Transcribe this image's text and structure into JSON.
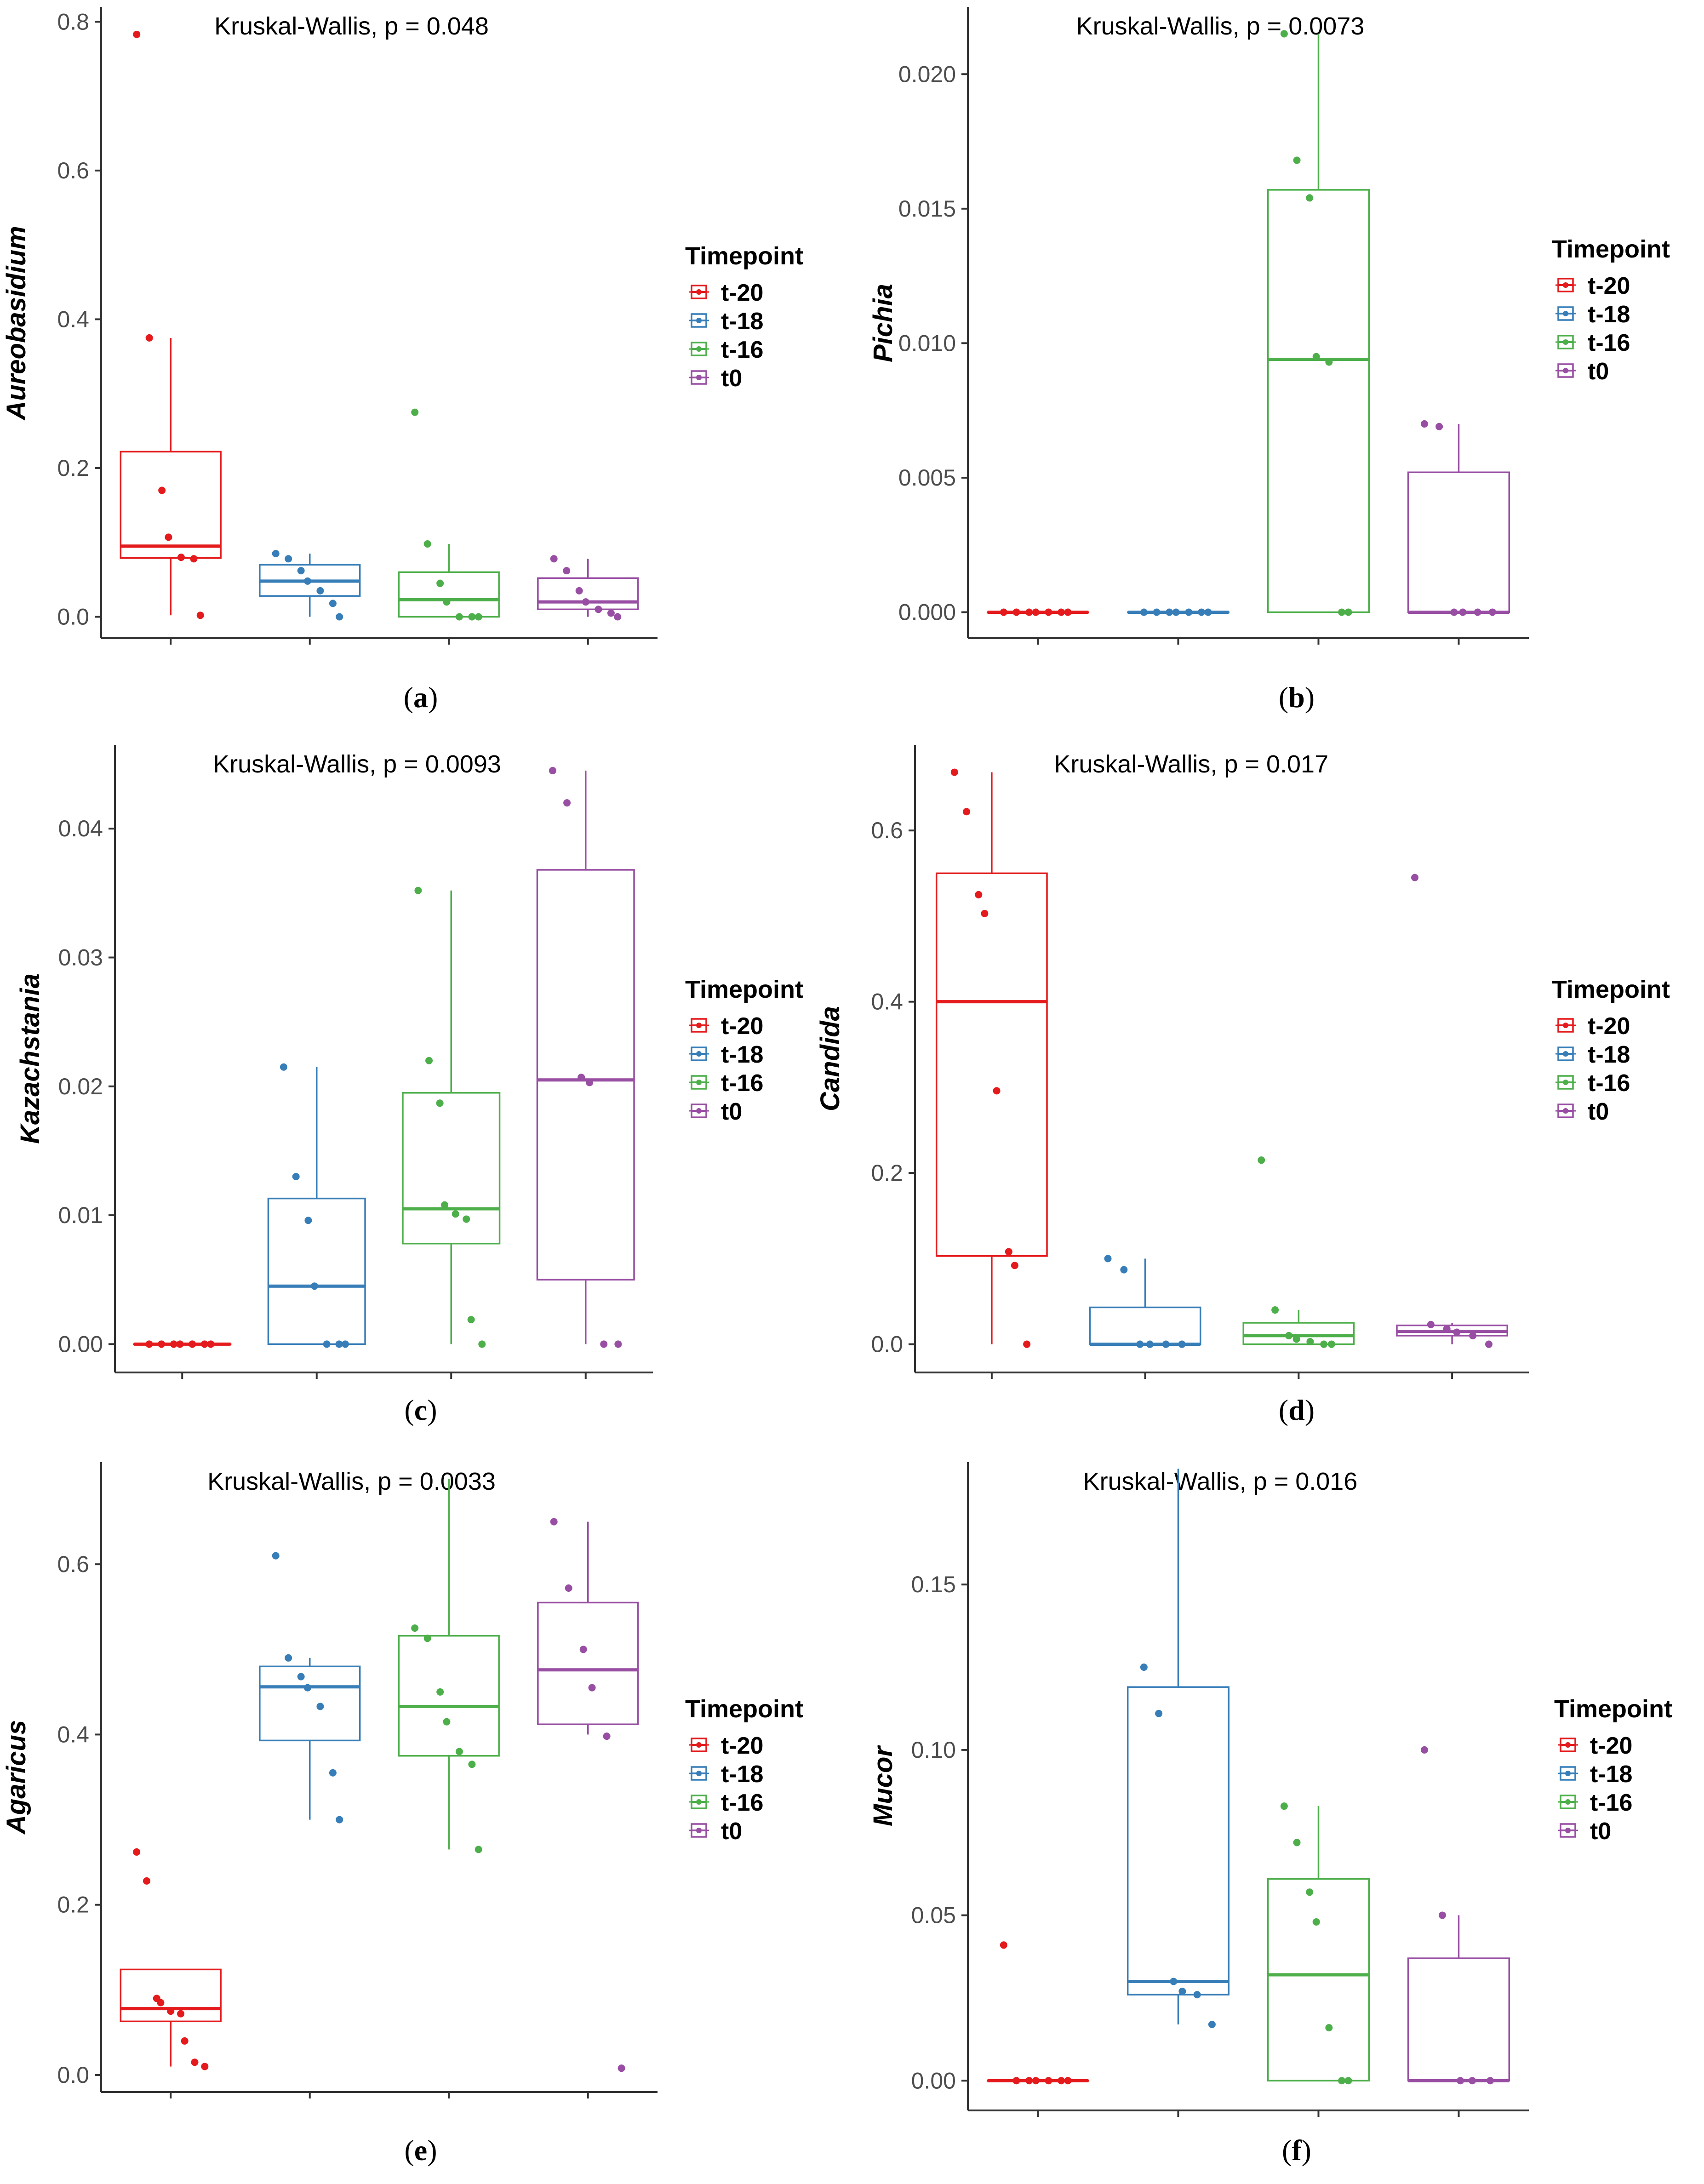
{
  "colors": {
    "t-20": "#e41a1c",
    "t-18": "#377eb8",
    "t-16": "#4daf4a",
    "t0": "#984ea3",
    "axis": "#333333",
    "text": "#000000"
  },
  "legend": {
    "title": "Timepoint",
    "entries": [
      "t-20",
      "t-18",
      "t-16",
      "t0"
    ]
  },
  "captions": [
    "a",
    "b",
    "c",
    "d",
    "e",
    "f"
  ],
  "chart_data": [
    {
      "panel": "a",
      "type": "boxplot",
      "ylabel": "Aureobasidium",
      "annotation": "Kruskal-Wallis, p = 0.048",
      "ylim": [
        -0.03,
        0.82
      ],
      "yticks": [
        0.0,
        0.2,
        0.4,
        0.6,
        0.8
      ],
      "ytick_labels": [
        "0.0",
        "0.2",
        "0.4",
        "0.6",
        "0.8"
      ],
      "groups": [
        {
          "name": "t-20",
          "q1": 0.079,
          "median": 0.095,
          "q3": 0.222,
          "whisker_low": 0.002,
          "whisker_high": 0.375,
          "points": [
            0.783,
            0.375,
            0.17,
            0.107,
            0.08,
            0.078,
            0.002
          ]
        },
        {
          "name": "t-18",
          "q1": 0.028,
          "median": 0.048,
          "q3": 0.07,
          "whisker_low": 0.0,
          "whisker_high": 0.085,
          "points": [
            0.085,
            0.078,
            0.062,
            0.048,
            0.035,
            0.018,
            0.0
          ]
        },
        {
          "name": "t-16",
          "q1": 0.0,
          "median": 0.023,
          "q3": 0.06,
          "whisker_low": 0.0,
          "whisker_high": 0.098,
          "points": [
            0.275,
            0.098,
            0.045,
            0.02,
            0.0,
            0.0,
            0.0
          ]
        },
        {
          "name": "t0",
          "q1": 0.01,
          "median": 0.02,
          "q3": 0.052,
          "whisker_low": 0.0,
          "whisker_high": 0.078,
          "points": [
            0.078,
            0.062,
            0.035,
            0.02,
            0.01,
            0.005,
            0.0
          ]
        }
      ]
    },
    {
      "panel": "b",
      "type": "boxplot",
      "ylabel": "Pichia",
      "annotation": "Kruskal-Wallis, p = 0.0073",
      "ylim": [
        -0.001,
        0.0225
      ],
      "yticks": [
        0.0,
        0.005,
        0.01,
        0.015,
        0.02
      ],
      "ytick_labels": [
        "0.000",
        "0.005",
        "0.010",
        "0.015",
        "0.020"
      ],
      "groups": [
        {
          "name": "t-20",
          "q1": 0.0,
          "median": 0.0,
          "q3": 0.0,
          "whisker_low": 0.0,
          "whisker_high": 0.0,
          "points": [
            0,
            0,
            0,
            0,
            0,
            0,
            0
          ]
        },
        {
          "name": "t-18",
          "q1": 0.0,
          "median": 0.0,
          "q3": 0.0,
          "whisker_low": 0.0,
          "whisker_high": 0.0,
          "points": [
            0,
            0,
            0,
            0,
            0,
            0,
            0
          ]
        },
        {
          "name": "t-16",
          "q1": 0.0,
          "median": 0.0094,
          "q3": 0.0157,
          "whisker_low": 0.0,
          "whisker_high": 0.0215,
          "points": [
            0.0215,
            0.0168,
            0.0154,
            0.0095,
            0.0093,
            0.0,
            0.0
          ]
        },
        {
          "name": "t0",
          "q1": 0.0,
          "median": 0.0,
          "q3": 0.0052,
          "whisker_low": 0.0,
          "whisker_high": 0.007,
          "points": [
            0.007,
            0.0069,
            0.0,
            0.0,
            0.0,
            0.0
          ]
        }
      ]
    },
    {
      "panel": "c",
      "type": "boxplot",
      "ylabel": "Kazachstania",
      "annotation": "Kruskal-Wallis, p = 0.0093",
      "ylim": [
        -0.0022,
        0.0465
      ],
      "yticks": [
        0.0,
        0.01,
        0.02,
        0.03,
        0.04
      ],
      "ytick_labels": [
        "0.00",
        "0.01",
        "0.02",
        "0.03",
        "0.04"
      ],
      "groups": [
        {
          "name": "t-20",
          "q1": 0.0,
          "median": 0.0,
          "q3": 0.0,
          "whisker_low": 0.0,
          "whisker_high": 0.0,
          "points": [
            0,
            0,
            0,
            0,
            0,
            0,
            0
          ]
        },
        {
          "name": "t-18",
          "q1": 0.0,
          "median": 0.0045,
          "q3": 0.0113,
          "whisker_low": 0.0,
          "whisker_high": 0.0215,
          "points": [
            0.0215,
            0.013,
            0.0096,
            0.0045,
            0.0,
            0.0,
            0.0
          ]
        },
        {
          "name": "t-16",
          "q1": 0.0078,
          "median": 0.0105,
          "q3": 0.0195,
          "whisker_low": 0.0,
          "whisker_high": 0.0352,
          "points": [
            0.0352,
            0.022,
            0.0187,
            0.0108,
            0.0101,
            0.0097,
            0.0019,
            0.0
          ]
        },
        {
          "name": "t0",
          "q1": 0.005,
          "median": 0.0205,
          "q3": 0.0368,
          "whisker_low": 0.0,
          "whisker_high": 0.0445,
          "points": [
            0.0445,
            0.042,
            0.0207,
            0.0203,
            0.0,
            0.0
          ]
        }
      ]
    },
    {
      "panel": "d",
      "type": "boxplot",
      "ylabel": "Candida",
      "annotation": "Kruskal-Wallis, p = 0.017",
      "ylim": [
        -0.033,
        0.7
      ],
      "yticks": [
        0.0,
        0.2,
        0.4,
        0.6
      ],
      "ytick_labels": [
        "0.0",
        "0.2",
        "0.4",
        "0.6"
      ],
      "groups": [
        {
          "name": "t-20",
          "q1": 0.103,
          "median": 0.4,
          "q3": 0.55,
          "whisker_low": 0.0,
          "whisker_high": 0.668,
          "points": [
            0.668,
            0.622,
            0.525,
            0.503,
            0.296,
            0.108,
            0.092,
            0.0
          ]
        },
        {
          "name": "t-18",
          "q1": 0.0,
          "median": 0.0,
          "q3": 0.043,
          "whisker_low": 0.0,
          "whisker_high": 0.1,
          "points": [
            0.1,
            0.087,
            0.0,
            0.0,
            0.0,
            0.0
          ]
        },
        {
          "name": "t-16",
          "q1": 0.0,
          "median": 0.01,
          "q3": 0.025,
          "whisker_low": 0.0,
          "whisker_high": 0.04,
          "points": [
            0.215,
            0.04,
            0.01,
            0.006,
            0.003,
            0.0,
            0.0
          ]
        },
        {
          "name": "t0",
          "q1": 0.01,
          "median": 0.015,
          "q3": 0.022,
          "whisker_low": 0.0,
          "whisker_high": 0.025,
          "points": [
            0.545,
            0.023,
            0.018,
            0.014,
            0.01,
            0.0
          ]
        }
      ]
    },
    {
      "panel": "e",
      "type": "boxplot",
      "ylabel": "Agaricus",
      "annotation": "Kruskal-Wallis, p = 0.0033",
      "ylim": [
        -0.02,
        0.72
      ],
      "yticks": [
        0.0,
        0.2,
        0.4,
        0.6
      ],
      "ytick_labels": [
        "0.0",
        "0.2",
        "0.4",
        "0.6"
      ],
      "groups": [
        {
          "name": "t-20",
          "q1": 0.063,
          "median": 0.078,
          "q3": 0.124,
          "whisker_low": 0.01,
          "whisker_high": 0.124,
          "points": [
            0.262,
            0.228,
            0.09,
            0.085,
            0.075,
            0.072,
            0.04,
            0.015,
            0.01
          ]
        },
        {
          "name": "t-18",
          "q1": 0.393,
          "median": 0.456,
          "q3": 0.48,
          "whisker_low": 0.3,
          "whisker_high": 0.49,
          "points": [
            0.61,
            0.49,
            0.468,
            0.455,
            0.433,
            0.355,
            0.3
          ]
        },
        {
          "name": "t-16",
          "q1": 0.375,
          "median": 0.433,
          "q3": 0.516,
          "whisker_low": 0.265,
          "whisker_high": 0.7,
          "points": [
            0.525,
            0.513,
            0.45,
            0.415,
            0.38,
            0.365,
            0.265
          ]
        },
        {
          "name": "t0",
          "q1": 0.412,
          "median": 0.476,
          "q3": 0.555,
          "whisker_low": 0.4,
          "whisker_high": 0.65,
          "points": [
            0.65,
            0.572,
            0.5,
            0.455,
            0.398,
            0.008
          ]
        }
      ]
    },
    {
      "panel": "f",
      "type": "boxplot",
      "ylabel": "Mucor",
      "annotation": "Kruskal-Wallis, p = 0.016",
      "ylim": [
        -0.009,
        0.187
      ],
      "yticks": [
        0.0,
        0.05,
        0.1,
        0.15
      ],
      "ytick_labels": [
        "0.00",
        "0.05",
        "0.10",
        "0.15"
      ],
      "groups": [
        {
          "name": "t-20",
          "q1": 0.0,
          "median": 0.0,
          "q3": 0.0,
          "whisker_low": 0.0,
          "whisker_high": 0.0,
          "points": [
            0.041,
            0.0,
            0.0,
            0.0,
            0.0,
            0.0,
            0.0
          ]
        },
        {
          "name": "t-18",
          "q1": 0.026,
          "median": 0.03,
          "q3": 0.119,
          "whisker_low": 0.017,
          "whisker_high": 0.185,
          "points": [
            0.125,
            0.111,
            0.03,
            0.027,
            0.026,
            0.017
          ]
        },
        {
          "name": "t-16",
          "q1": 0.0,
          "median": 0.032,
          "q3": 0.061,
          "whisker_low": 0.0,
          "whisker_high": 0.083,
          "points": [
            0.083,
            0.072,
            0.057,
            0.048,
            0.016,
            0.0,
            0.0
          ]
        },
        {
          "name": "t0",
          "q1": 0.0,
          "median": 0.0,
          "q3": 0.037,
          "whisker_low": 0.0,
          "whisker_high": 0.05,
          "points": [
            0.1,
            0.05,
            0.0,
            0.0,
            0.0
          ]
        }
      ]
    }
  ]
}
